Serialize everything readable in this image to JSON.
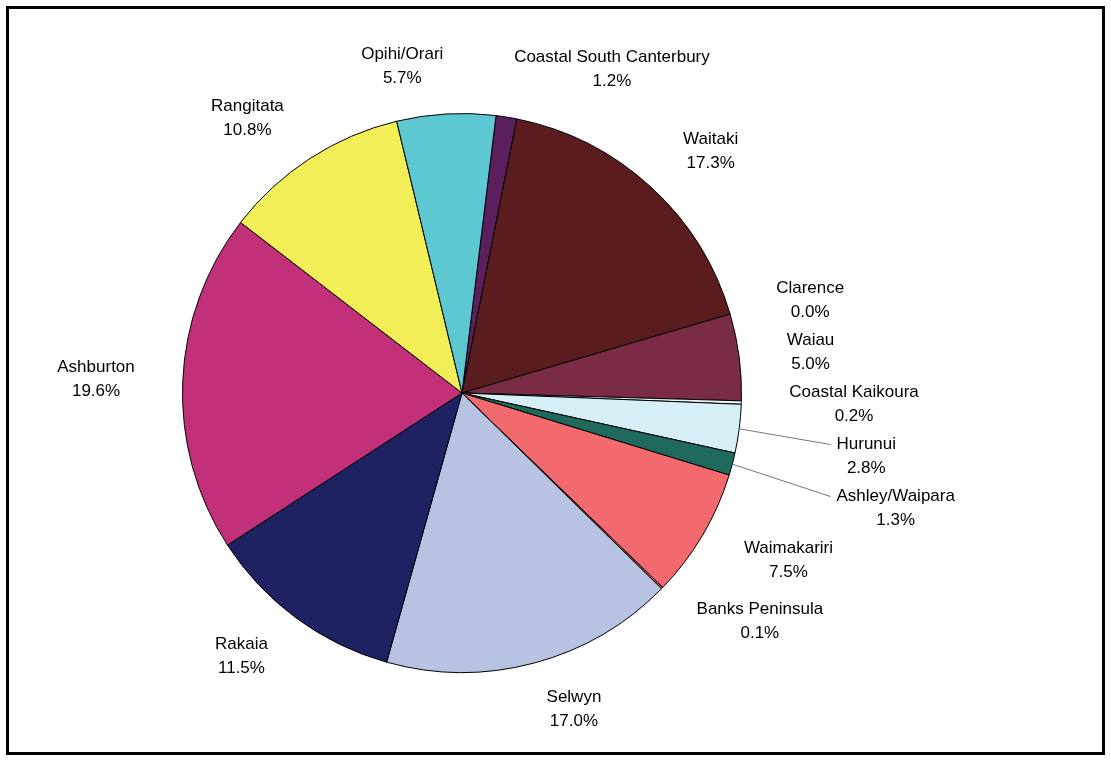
{
  "chart_data": {
    "type": "pie",
    "categories": [
      "Coastal South Canterbury",
      "Waitaki",
      "Clarence",
      "Waiau",
      "Coastal Kaikoura",
      "Hurunui",
      "Ashley/Waipara",
      "Waimakariri",
      "Banks Peninsula",
      "Selwyn",
      "Rakaia",
      "Ashburton",
      "Rangitata",
      "Opihi/Orari"
    ],
    "values": [
      1.2,
      17.3,
      0.0,
      5.0,
      0.2,
      2.8,
      1.3,
      7.5,
      0.1,
      17.0,
      11.5,
      19.6,
      10.8,
      5.7
    ],
    "value_labels": [
      "1.2%",
      "17.3%",
      "0.0%",
      "5.0%",
      "0.2%",
      "2.8%",
      "1.3%",
      "7.5%",
      "0.1%",
      "17.0%",
      "11.5%",
      "19.6%",
      "10.8%",
      "5.7%"
    ],
    "colors": [
      "#5c1f5e",
      "#5a1c1e",
      "#6e2434",
      "#7a2c44",
      "#e8ecf4",
      "#d6eef6",
      "#1f6a5c",
      "#f26a6e",
      "#e05a5e",
      "#b8c2e2",
      "#1e2262",
      "#c2307a",
      "#f2ee58",
      "#5ec8d2"
    ],
    "legend": false
  }
}
